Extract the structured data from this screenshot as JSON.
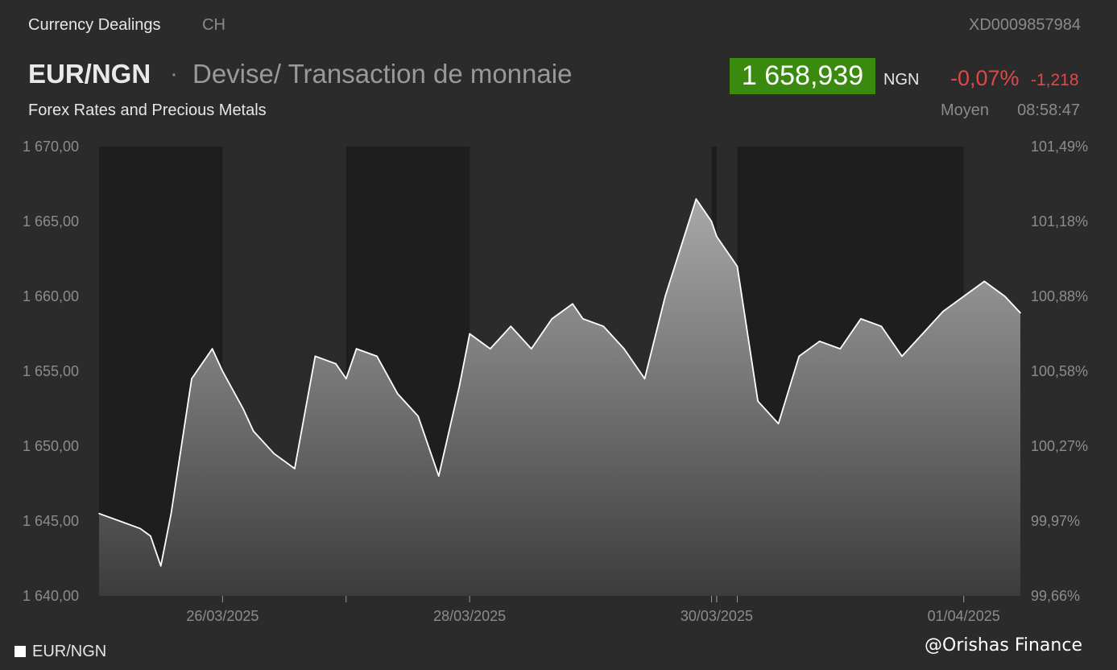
{
  "header": {
    "section": "Currency Dealings",
    "exchange": "CH",
    "isin": "XD0009857984"
  },
  "instrument": {
    "symbol": "EUR/NGN",
    "separator": "·",
    "description": "Devise/ Transaction de monnaie",
    "category": "Forex Rates and Precious Metals"
  },
  "quote": {
    "price": "1 658,939",
    "currency": "NGN",
    "change_pct": "-0,07%",
    "change_abs": "-1,218",
    "price_type": "Moyen",
    "time": "08:58:47",
    "price_bg_color": "#3a8a10",
    "change_color": "#e04848"
  },
  "legend": {
    "label": "EUR/NGN"
  },
  "watermark": "@Orishas Finance",
  "chart_data": {
    "type": "area",
    "series": [
      {
        "name": "EUR/NGN",
        "x": [
          "2025-03-25 00:00",
          "2025-03-25 04:00",
          "2025-03-25 08:00",
          "2025-03-25 10:00",
          "2025-03-25 12:00",
          "2025-03-25 14:00",
          "2025-03-25 18:00",
          "2025-03-25 22:00",
          "2025-03-26 00:00",
          "2025-03-26 04:00",
          "2025-03-26 06:00",
          "2025-03-26 10:00",
          "2025-03-26 14:00",
          "2025-03-26 18:00",
          "2025-03-26 22:00",
          "2025-03-27 00:00",
          "2025-03-27 02:00",
          "2025-03-27 06:00",
          "2025-03-27 10:00",
          "2025-03-27 14:00",
          "2025-03-27 18:00",
          "2025-03-27 22:00",
          "2025-03-28 00:00",
          "2025-03-28 04:00",
          "2025-03-28 08:00",
          "2025-03-28 12:00",
          "2025-03-28 16:00",
          "2025-03-28 20:00",
          "2025-03-28 22:00",
          "2025-03-29 02:00",
          "2025-03-29 06:00",
          "2025-03-29 10:00",
          "2025-03-29 14:00",
          "2025-03-29 20:00",
          "2025-03-29 23:00",
          "2025-03-30 00:00",
          "2025-03-30 04:00",
          "2025-03-30 08:00",
          "2025-03-30 12:00",
          "2025-03-30 16:00",
          "2025-03-30 20:00",
          "2025-03-31 00:00",
          "2025-03-31 04:00",
          "2025-03-31 08:00",
          "2025-03-31 12:00",
          "2025-03-31 16:00",
          "2025-03-31 20:00",
          "2025-04-01 00:00",
          "2025-04-01 04:00",
          "2025-04-01 08:00",
          "2025-04-01 11:00"
        ],
        "values": [
          1645.5,
          1645.0,
          1644.5,
          1644.0,
          1642.0,
          1645.5,
          1654.5,
          1656.5,
          1655.0,
          1652.5,
          1651.0,
          1649.5,
          1648.5,
          1656.0,
          1655.5,
          1654.5,
          1656.5,
          1656.0,
          1653.5,
          1652.0,
          1648.0,
          1654.0,
          1657.5,
          1656.5,
          1658.0,
          1656.5,
          1658.5,
          1659.5,
          1658.5,
          1658.0,
          1656.5,
          1654.5,
          1660.0,
          1666.5,
          1665.0,
          1664.0,
          1662.0,
          1653.0,
          1651.5,
          1656.0,
          1657.0,
          1656.5,
          1658.5,
          1658.0,
          1656.0,
          1657.5,
          1659.0,
          1660.0,
          1661.0,
          1660.0,
          1658.9
        ]
      }
    ],
    "xlim": [
      "2025-03-25 00:00",
      "2025-04-01 11:00"
    ],
    "xticks": [
      "26/03/2025",
      "28/03/2025",
      "30/03/2025",
      "01/04/2025"
    ],
    "xtick_positions": [
      "2025-03-26 00:00",
      "2025-03-28 00:00",
      "2025-03-30 00:00",
      "2025-04-01 00:00"
    ],
    "minor_ticks": [
      "2025-03-27 00:00",
      "2025-03-29 23:00",
      "2025-03-30 00:00",
      "2025-03-30 04:00"
    ],
    "ylim": [
      1640,
      1670
    ],
    "yticks": [
      "1 640,00",
      "1 645,00",
      "1 650,00",
      "1 655,00",
      "1 660,00",
      "1 665,00",
      "1 670,00"
    ],
    "ytick_values": [
      1640,
      1645,
      1650,
      1655,
      1660,
      1665,
      1670
    ],
    "y2ticks": [
      "99,66%",
      "99,97%",
      "100,27%",
      "100,58%",
      "100,88%",
      "101,18%",
      "101,49%"
    ],
    "shaded_periods": [
      [
        "2025-03-25 00:00",
        "2025-03-26 00:00"
      ],
      [
        "2025-03-27 00:00",
        "2025-03-28 00:00"
      ],
      [
        "2025-03-29 23:00",
        "2025-03-30 00:00"
      ],
      [
        "2025-03-30 04:00",
        "2025-04-01 00:00"
      ]
    ],
    "line_color": "#ffffff",
    "shaded_color": "#1e1e1e",
    "grid": false,
    "legend_position": "bottom-left"
  }
}
